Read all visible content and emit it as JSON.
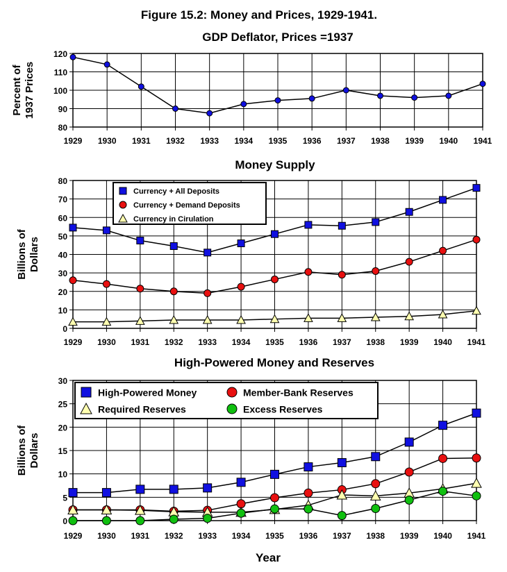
{
  "figure": {
    "title": "Figure 15.2: Money and Prices, 1929-1941.",
    "xlabel": "Year"
  },
  "colors": {
    "blue": "#1010e0",
    "red": "#e81010",
    "yellow": "#ffffb0",
    "green": "#10c010",
    "line": "#000000"
  },
  "chart_data": [
    {
      "type": "line",
      "title": "GDP Deflator, Prices =1937",
      "ylabel_lines": [
        "Percent of",
        "1937 Prices"
      ],
      "x": [
        1929,
        1930,
        1931,
        1932,
        1933,
        1934,
        1935,
        1936,
        1937,
        1938,
        1939,
        1940,
        1941
      ],
      "ylim": [
        80,
        120
      ],
      "yticks": [
        80,
        90,
        100,
        110,
        120
      ],
      "grid": true,
      "series": [
        {
          "name": "",
          "marker": "circle",
          "color": "blue",
          "values": [
            118,
            114,
            102,
            90,
            87.5,
            92.5,
            94.5,
            95.5,
            100,
            97,
            96,
            97,
            103.5
          ]
        }
      ]
    },
    {
      "type": "line",
      "title": "Money Supply",
      "ylabel_lines": [
        "Billions of",
        "Dollars"
      ],
      "x": [
        1929,
        1930,
        1931,
        1932,
        1933,
        1934,
        1935,
        1936,
        1937,
        1938,
        1939,
        1940,
        1941
      ],
      "ylim": [
        0,
        80
      ],
      "yticks": [
        0,
        10,
        20,
        30,
        40,
        50,
        60,
        70,
        80
      ],
      "grid": true,
      "legend": {
        "position": "top-left",
        "columns": 1
      },
      "series": [
        {
          "name": "Currency + All Deposits",
          "marker": "square",
          "color": "blue",
          "values": [
            54.5,
            53,
            47.5,
            44.5,
            41,
            46,
            51,
            56,
            55.5,
            57.5,
            63,
            69.5,
            76
          ]
        },
        {
          "name": "Currency + Demand Deposits",
          "marker": "circle",
          "color": "red",
          "values": [
            26,
            24,
            21.5,
            20,
            19,
            22.5,
            26.5,
            30.5,
            29,
            31,
            36,
            42,
            48
          ]
        },
        {
          "name": "Currency in Cirulation",
          "marker": "triangle",
          "color": "yellow",
          "values": [
            3.5,
            3.5,
            4,
            4.5,
            4.5,
            4.5,
            5,
            5.5,
            5.5,
            6,
            6.5,
            7.5,
            9.5
          ]
        }
      ]
    },
    {
      "type": "line",
      "title": "High-Powered Money and Reserves",
      "ylabel_lines": [
        "Billions of",
        "Dollars"
      ],
      "x": [
        1929,
        1930,
        1931,
        1932,
        1933,
        1934,
        1935,
        1936,
        1937,
        1938,
        1939,
        1940,
        1941
      ],
      "ylim": [
        0,
        30
      ],
      "yticks": [
        0,
        5,
        10,
        15,
        20,
        25,
        30
      ],
      "grid": true,
      "legend": {
        "position": "top-left",
        "columns": 2
      },
      "series": [
        {
          "name": "High-Powered Money",
          "marker": "square",
          "color": "blue",
          "values": [
            6,
            6,
            6.7,
            6.7,
            7,
            8.2,
            9.9,
            11.5,
            12.4,
            13.7,
            16.8,
            20.4,
            23
          ]
        },
        {
          "name": "Member-Bank Reserves",
          "marker": "circle",
          "color": "red",
          "values": [
            2.3,
            2.3,
            2.3,
            2,
            2.2,
            3.6,
            4.9,
            5.9,
            6.6,
            7.9,
            10.4,
            13.3,
            13.4
          ]
        },
        {
          "name": "Required Reserves",
          "marker": "triangle",
          "color": "yellow",
          "values": [
            2.3,
            2.3,
            2.2,
            1.9,
            1.8,
            1.8,
            2.4,
            3.3,
            5.5,
            5.3,
            5.9,
            6.8,
            8
          ]
        },
        {
          "name": "Excess Reserves",
          "marker": "circle",
          "color": "green",
          "values": [
            0,
            0,
            0,
            0.3,
            0.5,
            1.6,
            2.5,
            2.5,
            1.1,
            2.6,
            4.4,
            6.3,
            5.3
          ]
        }
      ]
    }
  ]
}
